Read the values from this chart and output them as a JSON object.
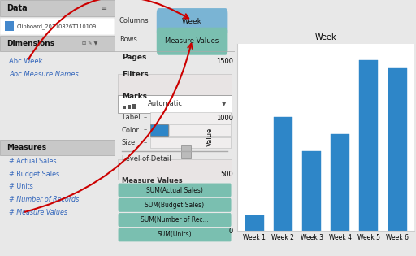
{
  "title": "Week",
  "ylabel": "Value",
  "weeks": [
    "Week 1",
    "Week 2",
    "Week 3",
    "Week 4",
    "Week 5",
    "Week 6"
  ],
  "values": [
    130,
    1000,
    700,
    850,
    1500,
    1430
  ],
  "bar_color": "#2E86C8",
  "yticks": [
    0,
    500,
    1000,
    1500
  ],
  "ylim": [
    0,
    1650
  ],
  "bg_color": "#e8e8e8",
  "left_panel_bg": "#f0f0f0",
  "mid_panel_bg": "#d8d4d4",
  "chart_bg": "#ffffff",
  "dimensions_items": [
    "Abc Week",
    "Abc Measure Names"
  ],
  "measures_items": [
    "# Actual Sales",
    "# Budget Sales",
    "# Units",
    "# Number of Records",
    "# Measure Values"
  ],
  "measure_value_pills": [
    "SUM(Actual Sales)",
    "SUM(Budget Sales)",
    "SUM(Number of Rec...",
    "SUM(Units)"
  ],
  "columns_pill": "Week",
  "rows_pill": "Measure Values",
  "columns_pill_color": "#7ab4d4",
  "rows_pill_color": "#7abfb0",
  "data_source": "Clipboard_20110826T110109",
  "pill_color": "#7abfb0",
  "arrow_color": "#cc0000"
}
